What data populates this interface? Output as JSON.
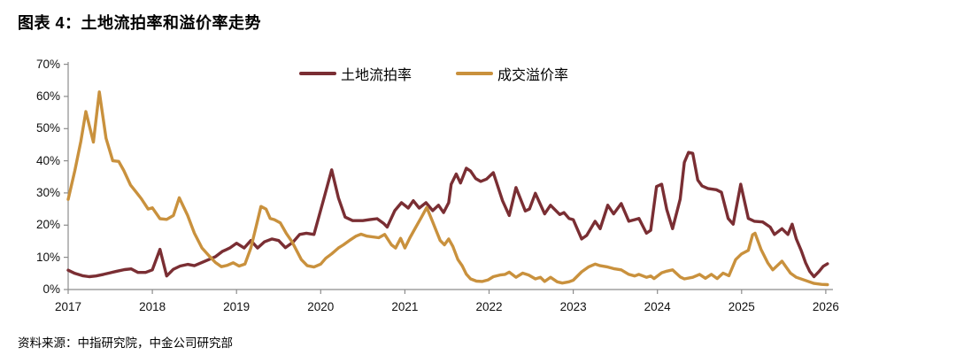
{
  "page": {
    "title": "图表 4：土地流拍率和溢价率走势",
    "source": "资料来源：中指研究院，中金公司研究部"
  },
  "chart_data": {
    "type": "line",
    "title": "图表 4：土地流拍率和溢价率走势",
    "legend_position": "top-center",
    "grid": false,
    "x_axis": {
      "ticks": [
        "2017",
        "2018",
        "2019",
        "2020",
        "2021",
        "2022",
        "2023",
        "2024",
        "2025",
        "2026"
      ],
      "range": [
        2017,
        2026.1
      ]
    },
    "y_axis": {
      "ticks": [
        "0%",
        "10%",
        "20%",
        "30%",
        "40%",
        "50%",
        "60%",
        "70%"
      ],
      "range": [
        0,
        70
      ],
      "unit": "%"
    },
    "axis_color": "#8c8c8c",
    "series": [
      {
        "name": "土地流拍率",
        "color": "#7A2E33",
        "points": [
          [
            2017.0,
            6.0
          ],
          [
            2017.08,
            5.0
          ],
          [
            2017.17,
            4.3
          ],
          [
            2017.25,
            4.0
          ],
          [
            2017.33,
            4.2
          ],
          [
            2017.42,
            4.7
          ],
          [
            2017.5,
            5.2
          ],
          [
            2017.58,
            5.7
          ],
          [
            2017.67,
            6.2
          ],
          [
            2017.75,
            6.4
          ],
          [
            2017.83,
            5.3
          ],
          [
            2017.92,
            5.3
          ],
          [
            2018.0,
            6.1
          ],
          [
            2018.09,
            12.5
          ],
          [
            2018.17,
            4.2
          ],
          [
            2018.25,
            6.3
          ],
          [
            2018.33,
            7.3
          ],
          [
            2018.42,
            7.8
          ],
          [
            2018.5,
            7.4
          ],
          [
            2018.58,
            8.3
          ],
          [
            2018.67,
            9.3
          ],
          [
            2018.75,
            10.2
          ],
          [
            2018.83,
            11.8
          ],
          [
            2018.92,
            12.9
          ],
          [
            2019.0,
            14.4
          ],
          [
            2019.09,
            12.9
          ],
          [
            2019.17,
            15.2
          ],
          [
            2019.25,
            12.9
          ],
          [
            2019.33,
            14.8
          ],
          [
            2019.42,
            15.7
          ],
          [
            2019.5,
            15.2
          ],
          [
            2019.58,
            13.0
          ],
          [
            2019.67,
            14.7
          ],
          [
            2019.75,
            17.1
          ],
          [
            2019.83,
            17.5
          ],
          [
            2019.92,
            17.1
          ],
          [
            2020.04,
            28.5
          ],
          [
            2020.13,
            37.2
          ],
          [
            2020.21,
            28.5
          ],
          [
            2020.29,
            22.5
          ],
          [
            2020.38,
            21.4
          ],
          [
            2020.5,
            21.4
          ],
          [
            2020.58,
            21.7
          ],
          [
            2020.67,
            22.0
          ],
          [
            2020.75,
            20.5
          ],
          [
            2020.79,
            19.4
          ],
          [
            2020.88,
            24.5
          ],
          [
            2020.96,
            27.0
          ],
          [
            2021.04,
            25.3
          ],
          [
            2021.1,
            27.6
          ],
          [
            2021.17,
            25.3
          ],
          [
            2021.25,
            27.0
          ],
          [
            2021.33,
            24.5
          ],
          [
            2021.4,
            26.2
          ],
          [
            2021.46,
            23.9
          ],
          [
            2021.52,
            27.0
          ],
          [
            2021.55,
            32.7
          ],
          [
            2021.61,
            35.9
          ],
          [
            2021.66,
            33.1
          ],
          [
            2021.73,
            37.7
          ],
          [
            2021.78,
            36.8
          ],
          [
            2021.84,
            34.5
          ],
          [
            2021.9,
            33.6
          ],
          [
            2021.97,
            34.3
          ],
          [
            2022.05,
            36.3
          ],
          [
            2022.16,
            27.6
          ],
          [
            2022.24,
            23.0
          ],
          [
            2022.32,
            31.7
          ],
          [
            2022.43,
            24.4
          ],
          [
            2022.48,
            25.0
          ],
          [
            2022.55,
            29.9
          ],
          [
            2022.66,
            23.5
          ],
          [
            2022.73,
            26.2
          ],
          [
            2022.84,
            23.3
          ],
          [
            2022.89,
            23.9
          ],
          [
            2022.95,
            22.1
          ],
          [
            2023.0,
            21.7
          ],
          [
            2023.1,
            15.7
          ],
          [
            2023.16,
            16.8
          ],
          [
            2023.26,
            21.2
          ],
          [
            2023.32,
            18.9
          ],
          [
            2023.41,
            26.2
          ],
          [
            2023.48,
            23.5
          ],
          [
            2023.57,
            26.7
          ],
          [
            2023.66,
            21.2
          ],
          [
            2023.73,
            21.7
          ],
          [
            2023.78,
            22.1
          ],
          [
            2023.87,
            17.5
          ],
          [
            2023.92,
            18.4
          ],
          [
            2023.99,
            32.0
          ],
          [
            2024.05,
            32.7
          ],
          [
            2024.11,
            24.9
          ],
          [
            2024.18,
            18.9
          ],
          [
            2024.27,
            28.1
          ],
          [
            2024.32,
            39.5
          ],
          [
            2024.37,
            42.6
          ],
          [
            2024.42,
            42.3
          ],
          [
            2024.48,
            34.0
          ],
          [
            2024.53,
            32.2
          ],
          [
            2024.6,
            31.4
          ],
          [
            2024.7,
            31.0
          ],
          [
            2024.76,
            30.2
          ],
          [
            2024.84,
            22.1
          ],
          [
            2024.9,
            20.3
          ],
          [
            2024.99,
            32.7
          ],
          [
            2025.08,
            22.1
          ],
          [
            2025.15,
            21.2
          ],
          [
            2025.25,
            21.0
          ],
          [
            2025.34,
            19.4
          ],
          [
            2025.39,
            17.1
          ],
          [
            2025.48,
            18.9
          ],
          [
            2025.55,
            17.1
          ],
          [
            2025.6,
            20.3
          ],
          [
            2025.65,
            15.7
          ],
          [
            2025.71,
            12.0
          ],
          [
            2025.76,
            8.3
          ],
          [
            2025.81,
            5.6
          ],
          [
            2025.86,
            4.0
          ],
          [
            2025.92,
            5.6
          ],
          [
            2025.97,
            7.2
          ],
          [
            2026.02,
            8.0
          ]
        ]
      },
      {
        "name": "成交溢价率",
        "color": "#C9913D",
        "points": [
          [
            2017.0,
            28.0
          ],
          [
            2017.08,
            37.0
          ],
          [
            2017.15,
            46.0
          ],
          [
            2017.21,
            55.3
          ],
          [
            2017.3,
            45.8
          ],
          [
            2017.37,
            61.4
          ],
          [
            2017.45,
            47.0
          ],
          [
            2017.53,
            40.0
          ],
          [
            2017.6,
            39.8
          ],
          [
            2017.66,
            37.0
          ],
          [
            2017.74,
            32.5
          ],
          [
            2017.8,
            30.5
          ],
          [
            2017.87,
            28.2
          ],
          [
            2017.95,
            25.0
          ],
          [
            2018.0,
            25.4
          ],
          [
            2018.09,
            22.0
          ],
          [
            2018.17,
            21.8
          ],
          [
            2018.25,
            23.0
          ],
          [
            2018.32,
            28.5
          ],
          [
            2018.42,
            23.0
          ],
          [
            2018.5,
            17.5
          ],
          [
            2018.59,
            12.9
          ],
          [
            2018.68,
            10.3
          ],
          [
            2018.75,
            8.4
          ],
          [
            2018.82,
            7.1
          ],
          [
            2018.89,
            7.5
          ],
          [
            2018.96,
            8.3
          ],
          [
            2019.03,
            7.3
          ],
          [
            2019.1,
            7.9
          ],
          [
            2019.17,
            12.9
          ],
          [
            2019.24,
            20.3
          ],
          [
            2019.29,
            25.8
          ],
          [
            2019.35,
            25.0
          ],
          [
            2019.4,
            22.1
          ],
          [
            2019.45,
            21.7
          ],
          [
            2019.52,
            20.7
          ],
          [
            2019.59,
            17.5
          ],
          [
            2019.66,
            14.8
          ],
          [
            2019.77,
            9.3
          ],
          [
            2019.84,
            7.4
          ],
          [
            2019.92,
            7.0
          ],
          [
            2020.0,
            7.9
          ],
          [
            2020.06,
            9.7
          ],
          [
            2020.13,
            11.1
          ],
          [
            2020.21,
            12.9
          ],
          [
            2020.27,
            13.9
          ],
          [
            2020.34,
            15.2
          ],
          [
            2020.42,
            16.6
          ],
          [
            2020.48,
            17.2
          ],
          [
            2020.55,
            16.6
          ],
          [
            2020.69,
            16.1
          ],
          [
            2020.76,
            17.1
          ],
          [
            2020.84,
            13.9
          ],
          [
            2020.89,
            12.9
          ],
          [
            2020.95,
            15.9
          ],
          [
            2021.0,
            12.9
          ],
          [
            2021.06,
            16.1
          ],
          [
            2021.13,
            19.4
          ],
          [
            2021.2,
            22.6
          ],
          [
            2021.26,
            25.5
          ],
          [
            2021.32,
            21.7
          ],
          [
            2021.37,
            18.4
          ],
          [
            2021.42,
            15.2
          ],
          [
            2021.47,
            13.9
          ],
          [
            2021.52,
            15.7
          ],
          [
            2021.57,
            13.4
          ],
          [
            2021.63,
            9.3
          ],
          [
            2021.68,
            7.4
          ],
          [
            2021.73,
            4.8
          ],
          [
            2021.78,
            3.3
          ],
          [
            2021.85,
            2.6
          ],
          [
            2021.92,
            2.5
          ],
          [
            2021.99,
            3.0
          ],
          [
            2022.05,
            4.0
          ],
          [
            2022.13,
            4.5
          ],
          [
            2022.19,
            4.7
          ],
          [
            2022.24,
            5.4
          ],
          [
            2022.32,
            3.8
          ],
          [
            2022.4,
            5.1
          ],
          [
            2022.47,
            4.5
          ],
          [
            2022.55,
            3.3
          ],
          [
            2022.61,
            3.8
          ],
          [
            2022.66,
            2.5
          ],
          [
            2022.73,
            3.8
          ],
          [
            2022.81,
            2.4
          ],
          [
            2022.87,
            2.0
          ],
          [
            2022.95,
            2.4
          ],
          [
            2023.0,
            2.9
          ],
          [
            2023.1,
            5.5
          ],
          [
            2023.18,
            7.0
          ],
          [
            2023.26,
            7.9
          ],
          [
            2023.32,
            7.4
          ],
          [
            2023.41,
            7.0
          ],
          [
            2023.48,
            6.5
          ],
          [
            2023.57,
            6.1
          ],
          [
            2023.66,
            4.7
          ],
          [
            2023.73,
            4.2
          ],
          [
            2023.78,
            4.7
          ],
          [
            2023.87,
            3.8
          ],
          [
            2023.92,
            4.2
          ],
          [
            2023.96,
            3.4
          ],
          [
            2024.05,
            5.2
          ],
          [
            2024.11,
            5.7
          ],
          [
            2024.18,
            6.1
          ],
          [
            2024.27,
            3.9
          ],
          [
            2024.32,
            3.3
          ],
          [
            2024.42,
            3.8
          ],
          [
            2024.5,
            4.7
          ],
          [
            2024.57,
            3.5
          ],
          [
            2024.64,
            4.7
          ],
          [
            2024.71,
            3.4
          ],
          [
            2024.78,
            5.1
          ],
          [
            2024.85,
            4.3
          ],
          [
            2024.93,
            9.3
          ],
          [
            2025.0,
            11.1
          ],
          [
            2025.08,
            12.2
          ],
          [
            2025.13,
            17.0
          ],
          [
            2025.16,
            17.5
          ],
          [
            2025.23,
            12.5
          ],
          [
            2025.31,
            8.3
          ],
          [
            2025.37,
            6.1
          ],
          [
            2025.48,
            8.8
          ],
          [
            2025.58,
            5.1
          ],
          [
            2025.65,
            3.8
          ],
          [
            2025.76,
            2.8
          ],
          [
            2025.86,
            1.9
          ],
          [
            2025.95,
            1.6
          ],
          [
            2026.02,
            1.5
          ]
        ]
      }
    ]
  }
}
